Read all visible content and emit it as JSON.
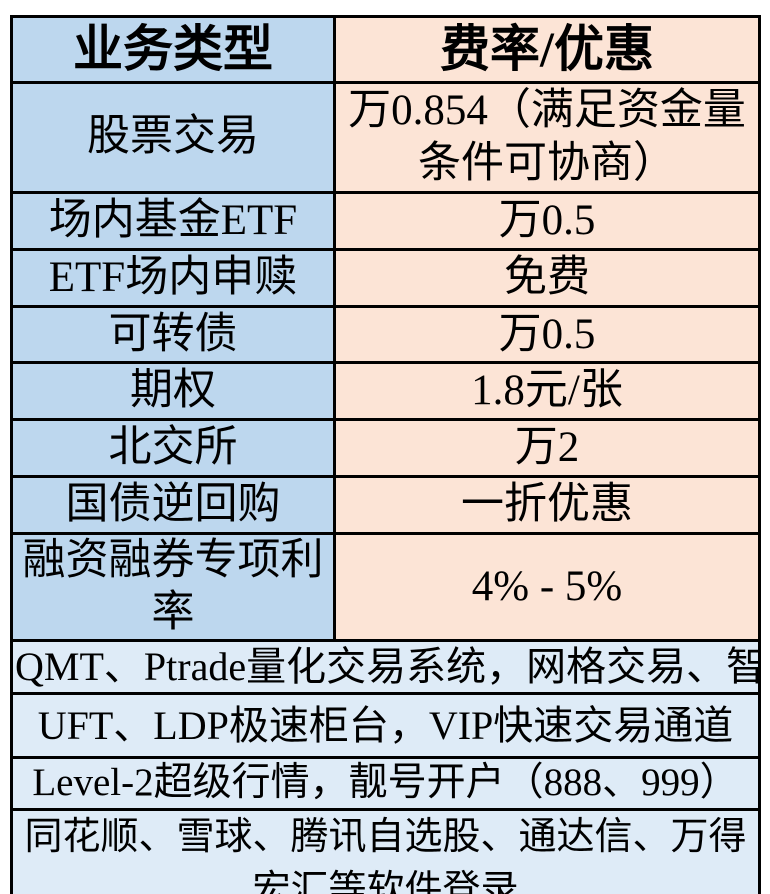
{
  "table": {
    "columns": {
      "type_header": "业务类型",
      "rate_header": "费率/优惠"
    },
    "colors": {
      "type_column_bg": "#BDD7EE",
      "rate_column_bg": "#FCE4D6",
      "footer_bg": "#DEEBF7",
      "border": "#000000",
      "text": "#000000"
    },
    "rows": [
      {
        "type": "股票交易",
        "rate": "万0.854（满足资金量\n条件可协商）"
      },
      {
        "type": "场内基金ETF",
        "rate": "万0.5"
      },
      {
        "type": "ETF场内申赎",
        "rate": "免费"
      },
      {
        "type": "可转债",
        "rate": "万0.5"
      },
      {
        "type": "期权",
        "rate": "1.8元/张"
      },
      {
        "type": "北交所",
        "rate": "万2"
      },
      {
        "type": "国债逆回购",
        "rate": "一折优惠"
      },
      {
        "type": "融资融券专项利率",
        "rate": "4% - 5%"
      }
    ],
    "footer_rows": [
      {
        "text": "QMT、Ptrade量化交易系统，网格交易、智"
      },
      {
        "text": "UFT、LDP极速柜台，VIP快速交易通道"
      },
      {
        "text": "Level-2超级行情，靓号开户（888、999）"
      },
      {
        "text": "同花顺、雪球、腾讯自选股、通达信、万得\n宏汇等软件登录"
      }
    ]
  }
}
